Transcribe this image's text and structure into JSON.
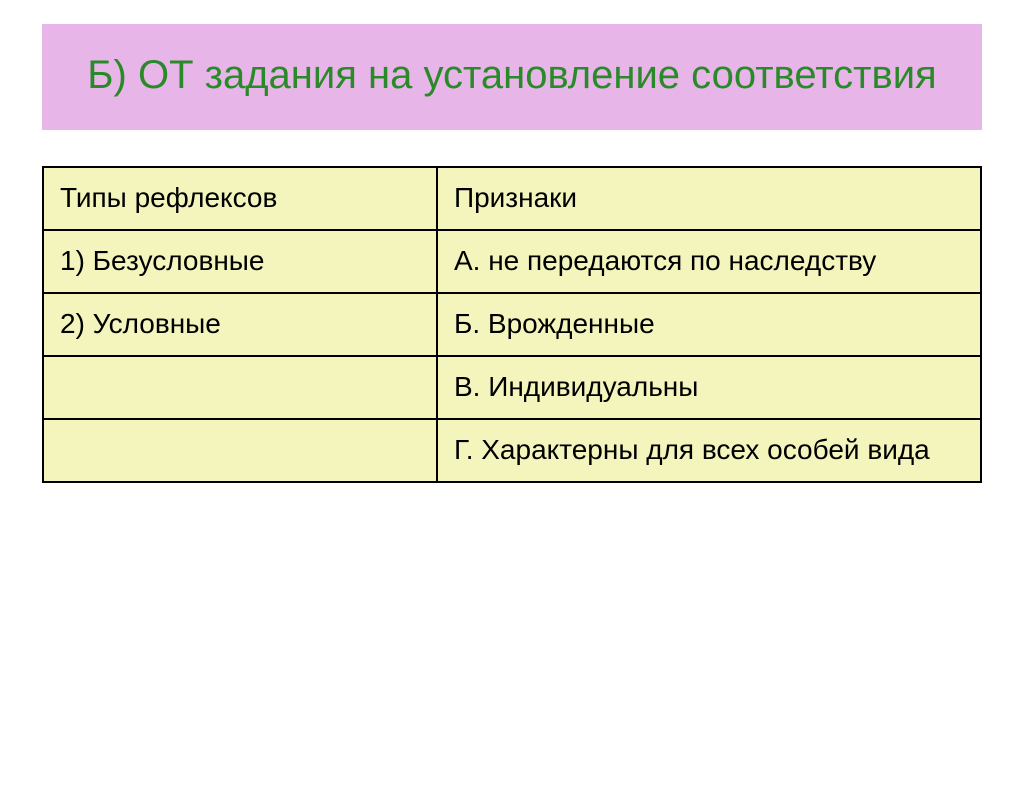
{
  "colors": {
    "banner_bg": "#e8b5e8",
    "title_color": "#2a8a2a",
    "cell_bg": "#f3f5bd",
    "border_color": "#000000",
    "text_color": "#000000"
  },
  "title": "Б) ОТ задания на установление соответствия",
  "table": {
    "columns": [
      "Типы рефлексов",
      " Признаки"
    ],
    "rows": [
      [
        "1) Безусловные",
        "А. не передаются по наследству"
      ],
      [
        "2) Условные",
        "Б. Врожденные"
      ],
      [
        "",
        "В. Индивидуальны"
      ],
      [
        "",
        "Г. Характерны для всех особей вида"
      ]
    ]
  }
}
